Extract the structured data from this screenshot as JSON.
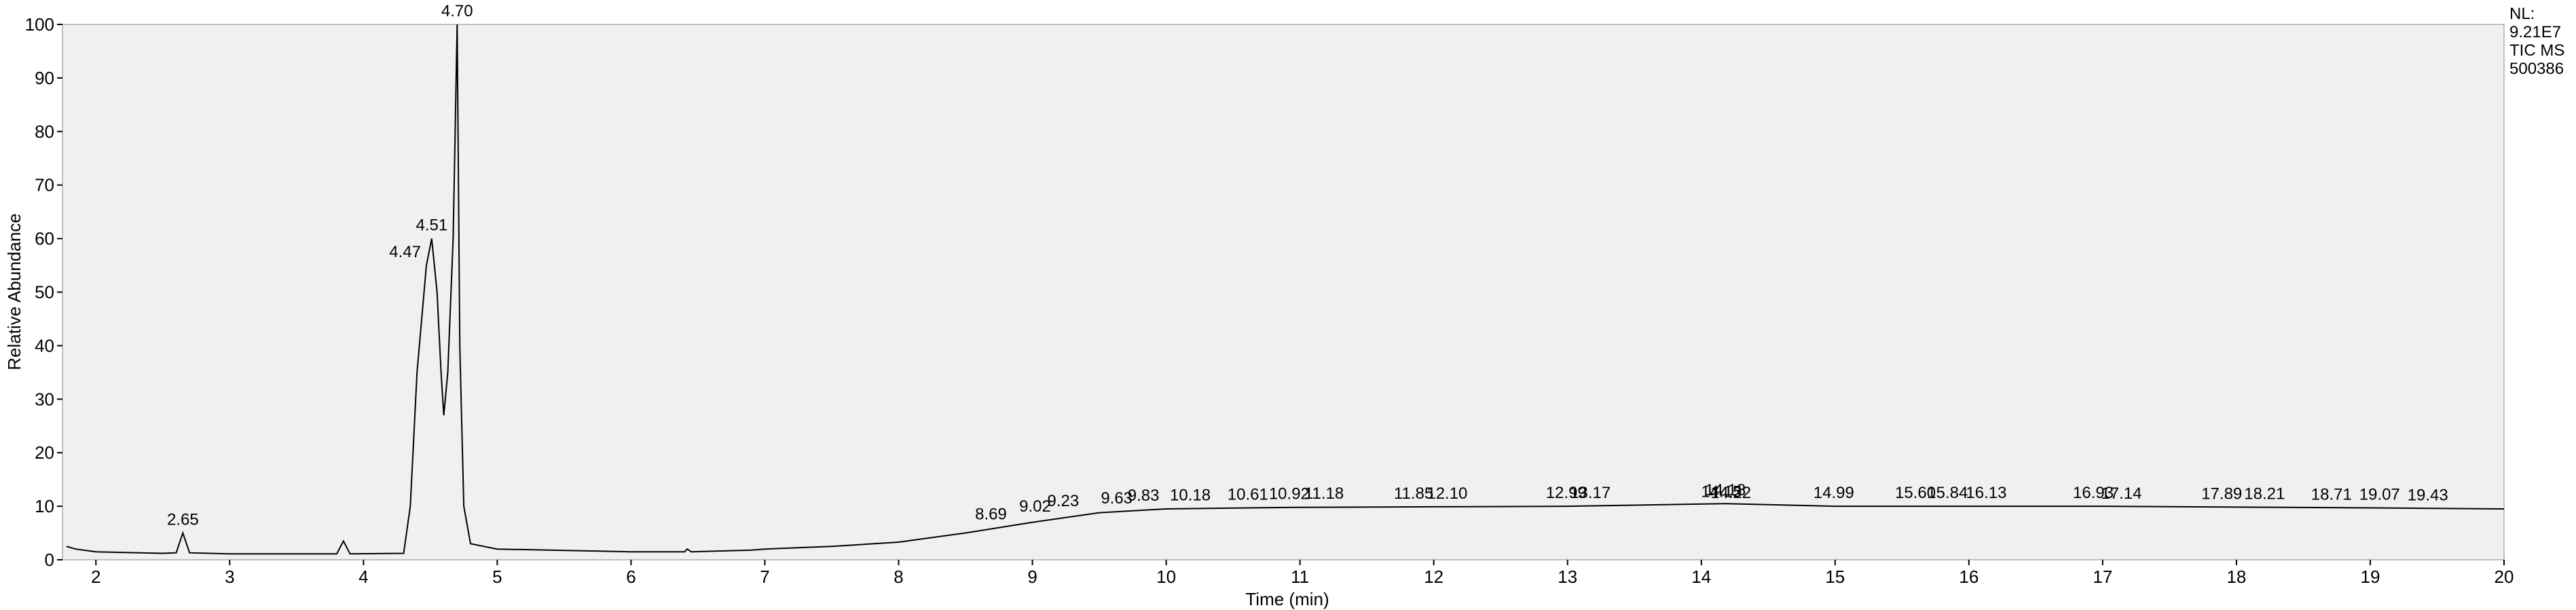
{
  "chart_data": {
    "type": "line",
    "x_label": "Time (min)",
    "y_label": "Relative Abundance",
    "info": [
      "NL:",
      "9.21E7",
      "TIC  MS",
      "500386"
    ],
    "color": "#000000",
    "xlim": [
      1.75,
      20
    ],
    "xticks": [
      2,
      3,
      4,
      5,
      6,
      7,
      8,
      9,
      10,
      11,
      12,
      13,
      14,
      15,
      16,
      17,
      18,
      19,
      20
    ],
    "ylim": [
      0,
      100
    ],
    "yticks": [
      0,
      10,
      20,
      30,
      40,
      50,
      60,
      70,
      80,
      90,
      100
    ],
    "x": [
      1.78,
      1.85,
      2.0,
      2.5,
      2.6,
      2.65,
      2.7,
      3.0,
      3.8,
      3.85,
      3.9,
      4.3,
      4.35,
      4.4,
      4.47,
      4.51,
      4.55,
      4.58,
      4.6,
      4.63,
      4.67,
      4.7,
      4.72,
      4.75,
      4.8,
      5.0,
      6.0,
      6.4,
      6.42,
      6.45,
      6.9,
      7.0,
      7.5,
      8.0,
      8.5,
      9.0,
      9.5,
      10.0,
      11.0,
      12.0,
      13.0,
      14.18,
      15.0,
      17.0,
      19.0,
      20.0
    ],
    "values": [
      2.5,
      2.0,
      1.5,
      1.2,
      1.3,
      5.0,
      1.3,
      1.1,
      1.1,
      3.5,
      1.1,
      1.2,
      10,
      35,
      55,
      60,
      50,
      35,
      27,
      35,
      60,
      100,
      40,
      10,
      3,
      2,
      1.5,
      1.5,
      2,
      1.5,
      1.8,
      2,
      2.5,
      3.3,
      5,
      7,
      8.8,
      9.5,
      9.8,
      9.9,
      10,
      10.5,
      10,
      10,
      9.7,
      9.5
    ],
    "peaks": [
      {
        "label": "2.65",
        "x": 2.65,
        "y": 5
      },
      {
        "label": "4.47",
        "x": 4.47,
        "y": 55
      },
      {
        "label": "4.51",
        "x": 4.51,
        "y": 60
      },
      {
        "label": "4.70",
        "x": 4.7,
        "y": 100
      },
      {
        "label": "8.69",
        "x": 8.69,
        "y": 6
      },
      {
        "label": "9.02",
        "x": 9.02,
        "y": 7.5
      },
      {
        "label": "9.23",
        "x": 9.23,
        "y": 8.5
      },
      {
        "label": "9.63",
        "x": 9.63,
        "y": 9
      },
      {
        "label": "9.83",
        "x": 9.83,
        "y": 9.5
      },
      {
        "label": "10.18",
        "x": 10.18,
        "y": 9.6
      },
      {
        "label": "10.61",
        "x": 10.61,
        "y": 9.7
      },
      {
        "label": "10.92",
        "x": 10.92,
        "y": 9.8
      },
      {
        "label": "11.18",
        "x": 11.18,
        "y": 9.9
      },
      {
        "label": "11.85",
        "x": 11.85,
        "y": 9.9
      },
      {
        "label": "12.10",
        "x": 12.1,
        "y": 9.9
      },
      {
        "label": "12.99",
        "x": 12.99,
        "y": 10
      },
      {
        "label": "13.17",
        "x": 13.17,
        "y": 10
      },
      {
        "label": "14.15",
        "x": 14.15,
        "y": 10.2
      },
      {
        "label": "14.18",
        "x": 14.18,
        "y": 10.5
      },
      {
        "label": "14.22",
        "x": 14.22,
        "y": 10
      },
      {
        "label": "14.99",
        "x": 14.99,
        "y": 10
      },
      {
        "label": "15.60",
        "x": 15.6,
        "y": 10
      },
      {
        "label": "15.84",
        "x": 15.84,
        "y": 10
      },
      {
        "label": "16.13",
        "x": 16.13,
        "y": 10
      },
      {
        "label": "16.93",
        "x": 16.93,
        "y": 10
      },
      {
        "label": "17.14",
        "x": 17.14,
        "y": 9.9
      },
      {
        "label": "17.89",
        "x": 17.89,
        "y": 9.8
      },
      {
        "label": "18.21",
        "x": 18.21,
        "y": 9.8
      },
      {
        "label": "18.71",
        "x": 18.71,
        "y": 9.7
      },
      {
        "label": "19.07",
        "x": 19.07,
        "y": 9.7
      },
      {
        "label": "19.43",
        "x": 19.43,
        "y": 9.6
      }
    ]
  }
}
